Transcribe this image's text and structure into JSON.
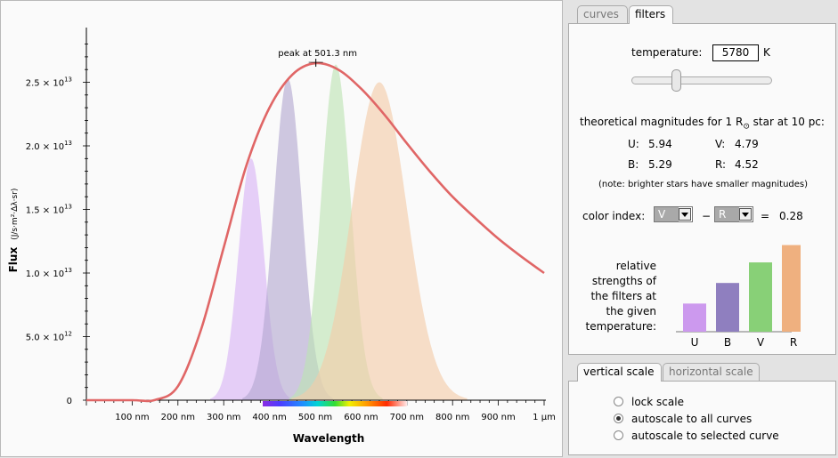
{
  "plot": {
    "y_axis_title": "Flux",
    "y_axis_unit": "(J/s·m²·Δλ·sr)",
    "x_axis_title": "Wavelength",
    "peak_label": "peak at 501.3 nm",
    "y_ticks": [
      {
        "value": 0,
        "mant": "0",
        "exp": ""
      },
      {
        "value": 5000000000000.0,
        "mant": "5.0 × 10",
        "exp": "12"
      },
      {
        "value": 10000000000000.0,
        "mant": "1.0 × 10",
        "exp": "13"
      },
      {
        "value": 15000000000000.0,
        "mant": "1.5 × 10",
        "exp": "13"
      },
      {
        "value": 20000000000000.0,
        "mant": "2.0 × 10",
        "exp": "13"
      },
      {
        "value": 25000000000000.0,
        "mant": "2.5 × 10",
        "exp": "13"
      }
    ],
    "x_ticks": [
      {
        "value": 100,
        "label": "100 nm"
      },
      {
        "value": 200,
        "label": "200 nm"
      },
      {
        "value": 300,
        "label": "300 nm"
      },
      {
        "value": 400,
        "label": "400 nm"
      },
      {
        "value": 500,
        "label": "500 nm"
      },
      {
        "value": 600,
        "label": "600 nm"
      },
      {
        "value": 700,
        "label": "700 nm"
      },
      {
        "value": 800,
        "label": "800 nm"
      },
      {
        "value": 900,
        "label": "900 nm"
      },
      {
        "value": 1000,
        "label": "1 µm"
      }
    ]
  },
  "chart_data": {
    "type": "line",
    "xlabel": "Wavelength",
    "ylabel": "Flux",
    "xlim": [
      0,
      1000
    ],
    "ylim": [
      0,
      28000000000000.0
    ],
    "series": [
      {
        "color": "#e06666",
        "x": [
          100,
          150,
          200,
          250,
          300,
          350,
          400,
          450,
          500,
          550,
          600,
          650,
          700,
          750,
          800,
          850,
          900,
          950,
          1000
        ],
        "y": [
          0,
          20000000000.0,
          1100000000000.0,
          5500000000000.0,
          12000000000000.0,
          18500000000000.0,
          23000000000000.0,
          25600000000000.0,
          26500000000000.0,
          26000000000000.0,
          24500000000000.0,
          22500000000000.0,
          20200000000000.0,
          18000000000000.0,
          16000000000000.0,
          14300000000000.0,
          12700000000000.0,
          11300000000000.0,
          10000000000000.0
        ]
      }
    ],
    "filters": [
      {
        "name": "U",
        "color": "#d9b3f5",
        "center": 360,
        "width": 28,
        "peak": 19000000000000.0
      },
      {
        "name": "B",
        "color": "#b3a8d1",
        "center": 440,
        "width": 31,
        "peak": 25300000000000.0
      },
      {
        "name": "V",
        "color": "#bde3b3",
        "center": 545,
        "width": 32,
        "peak": 26400000000000.0
      },
      {
        "name": "R",
        "color": "#f3cba8",
        "center": 640,
        "width": 60,
        "peak": 25000000000000.0
      }
    ],
    "peak": {
      "x": 501.3,
      "y": 26500000000000.0
    }
  },
  "tabs_top": {
    "curves": "curves",
    "filters": "filters",
    "active": "filters"
  },
  "filters_panel": {
    "temperature_label": "temperature:",
    "temperature_value": "5780",
    "temperature_unit": "K",
    "slider_value_fraction": 0.3,
    "magnitudes_heading_pre": "theoretical magnitudes for 1 R",
    "magnitudes_heading_sub": "⊙",
    "magnitudes_heading_post": " star at 10 pc:",
    "U_label": "U:",
    "U_value": "5.94",
    "V_label": "V:",
    "V_value": "4.79",
    "B_label": "B:",
    "B_value": "5.29",
    "R_label": "R:",
    "R_value": "4.52",
    "note": "(note: brighter stars have smaller magnitudes)",
    "color_index_label": "color index:",
    "ci_first": "V",
    "ci_minus": "−",
    "ci_second": "R",
    "ci_equals": "=",
    "ci_value": "0.28",
    "strengths_label_lines": [
      "relative",
      "strengths of",
      "the filters at",
      "the given",
      "temperature:"
    ],
    "strengths": [
      {
        "name": "U",
        "value": 0.26,
        "color": "#cc99ee"
      },
      {
        "name": "B",
        "value": 0.45,
        "color": "#8f7fbf"
      },
      {
        "name": "V",
        "value": 0.64,
        "color": "#88d077"
      },
      {
        "name": "R",
        "value": 0.8,
        "color": "#efb07f"
      }
    ]
  },
  "tabs_bottom": {
    "vertical": "vertical scale",
    "horizontal": "horizontal scale",
    "active": "vertical"
  },
  "scale_panel": {
    "options": [
      {
        "label": "lock scale",
        "checked": false
      },
      {
        "label": "autoscale to all curves",
        "checked": true
      },
      {
        "label": "autoscale to selected curve",
        "checked": false
      }
    ]
  }
}
